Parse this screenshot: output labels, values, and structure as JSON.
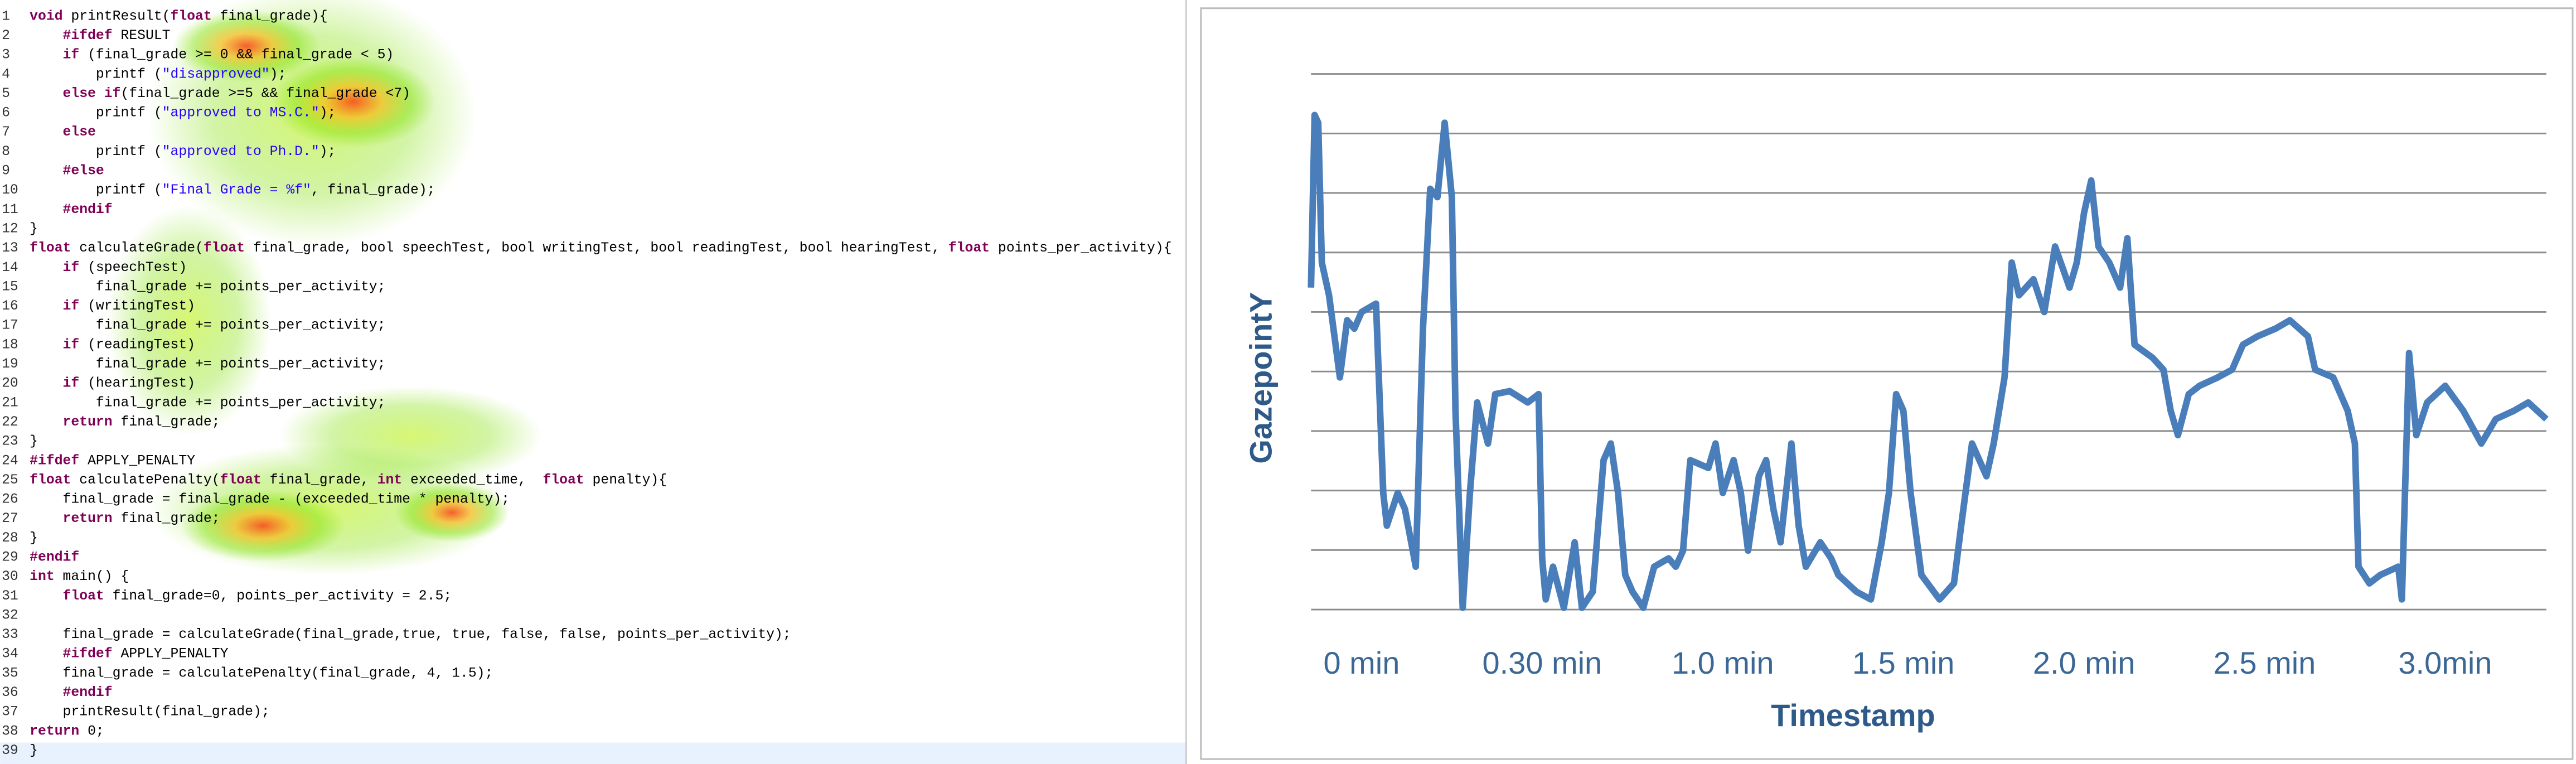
{
  "code": {
    "lines": [
      {
        "number": "1",
        "text": "void printResult(float final_grade){"
      },
      {
        "number": "2",
        "text": "    #ifdef RESULT"
      },
      {
        "number": "3",
        "text": "    if (final_grade >= 0 && final_grade < 5)"
      },
      {
        "number": "4",
        "text": "        printf (\"disapproved\");"
      },
      {
        "number": "5",
        "text": "    else if(final_grade >=5 && final_grade <7)"
      },
      {
        "number": "6",
        "text": "        printf (\"approved to MS.C.\");"
      },
      {
        "number": "7",
        "text": "    else"
      },
      {
        "number": "8",
        "text": "        printf (\"approved to Ph.D.\");"
      },
      {
        "number": "9",
        "text": "    #else"
      },
      {
        "number": "10",
        "text": "        printf (\"Final Grade = %f\", final_grade);"
      },
      {
        "number": "11",
        "text": "    #endif"
      },
      {
        "number": "12",
        "text": "}"
      },
      {
        "number": "13",
        "text": "float calculateGrade(float final_grade, bool speechTest, bool writingTest, bool readingTest, bool hearingTest, float points_per_activity){"
      },
      {
        "number": "14",
        "text": "    if (speechTest)"
      },
      {
        "number": "15",
        "text": "        final_grade += points_per_activity;"
      },
      {
        "number": "16",
        "text": "    if (writingTest)"
      },
      {
        "number": "17",
        "text": "        final_grade += points_per_activity;"
      },
      {
        "number": "18",
        "text": "    if (readingTest)"
      },
      {
        "number": "19",
        "text": "        final_grade += points_per_activity;"
      },
      {
        "number": "20",
        "text": "    if (hearingTest)"
      },
      {
        "number": "21",
        "text": "        final_grade += points_per_activity;"
      },
      {
        "number": "22",
        "text": "    return final_grade;"
      },
      {
        "number": "23",
        "text": "}"
      },
      {
        "number": "24",
        "text": "#ifdef APPLY_PENALTY"
      },
      {
        "number": "25",
        "text": "float calculatePenalty(float final_grade, int exceeded_time,  float penalty){"
      },
      {
        "number": "26",
        "text": "    final_grade = final_grade - (exceeded_time * penalty);"
      },
      {
        "number": "27",
        "text": "    return final_grade;"
      },
      {
        "number": "28",
        "text": "}"
      },
      {
        "number": "29",
        "text": "#endif"
      },
      {
        "number": "30",
        "text": "int main() {"
      },
      {
        "number": "31",
        "text": "    float final_grade=0, points_per_activity = 2.5;"
      },
      {
        "number": "32"
      },
      {
        "number": "33",
        "text": "    final_grade = calculateGrade(final_grade,true, true, false, false, points_per_activity);"
      },
      {
        "number": "34",
        "text": "    #ifdef APPLY_PENALTY"
      },
      {
        "number": "35",
        "text": "    final_grade = calculatePenalty(final_grade, 4, 1.5);"
      },
      {
        "number": "36",
        "text": "    #endif"
      },
      {
        "number": "37",
        "text": "    printResult(final_grade);"
      },
      {
        "number": "38",
        "text": "return 0;"
      },
      {
        "number": "39",
        "text": "}"
      }
    ]
  },
  "chart_data": {
    "type": "line",
    "xlabel": "Timestamp",
    "ylabel": "GazepointY",
    "xlim": [
      -0.14,
      3.28
    ],
    "ylim": [
      0,
      9
    ],
    "xticks": [
      {
        "value": 0,
        "label": "0 min"
      },
      {
        "value": 0.5,
        "label": "0.30 min"
      },
      {
        "value": 1,
        "label": "1.0 min"
      },
      {
        "value": 1.5,
        "label": "1.5 min"
      },
      {
        "value": 2,
        "label": "2.0 min"
      },
      {
        "value": 2.5,
        "label": "2.5 min"
      },
      {
        "value": 3,
        "label": "3.0min"
      }
    ],
    "yticks": [
      0,
      1,
      2,
      3,
      4,
      5,
      6,
      7,
      8,
      9
    ],
    "grid": true,
    "series": [
      {
        "name": "GazepointY",
        "color": "#4a7ebb",
        "x": [
          -0.14,
          -0.13,
          -0.12,
          -0.11,
          -0.09,
          -0.06,
          -0.04,
          -0.02,
          0.0,
          0.04,
          0.06,
          0.07,
          0.1,
          0.12,
          0.15,
          0.17,
          0.19,
          0.21,
          0.23,
          0.25,
          0.26,
          0.28,
          0.3,
          0.32,
          0.35,
          0.37,
          0.41,
          0.46,
          0.49,
          0.5,
          0.51,
          0.53,
          0.56,
          0.59,
          0.61,
          0.64,
          0.67,
          0.69,
          0.71,
          0.73,
          0.75,
          0.78,
          0.81,
          0.85,
          0.87,
          0.89,
          0.91,
          0.96,
          0.98,
          1.0,
          1.03,
          1.05,
          1.07,
          1.1,
          1.12,
          1.14,
          1.16,
          1.19,
          1.21,
          1.23,
          1.27,
          1.3,
          1.32,
          1.37,
          1.41,
          1.44,
          1.46,
          1.48,
          1.5,
          1.52,
          1.55,
          1.6,
          1.64,
          1.66,
          1.69,
          1.73,
          1.75,
          1.78,
          1.8,
          1.82,
          1.86,
          1.89,
          1.92,
          1.96,
          1.98,
          2.0,
          2.02,
          2.04,
          2.07,
          2.1,
          2.12,
          2.14,
          2.19,
          2.22,
          2.24,
          2.26,
          2.29,
          2.32,
          2.37,
          2.41,
          2.44,
          2.48,
          2.53,
          2.57,
          2.62,
          2.64,
          2.69,
          2.73,
          2.75,
          2.76,
          2.79,
          2.82,
          2.87,
          2.88,
          2.9,
          2.92,
          2.95,
          3.0,
          3.05,
          3.1,
          3.14,
          3.19,
          3.23,
          3.28
        ],
        "values": [
          5.41,
          8.31,
          8.18,
          5.83,
          5.28,
          3.9,
          4.86,
          4.72,
          5.0,
          5.14,
          1.96,
          1.41,
          1.96,
          1.69,
          0.72,
          4.72,
          7.07,
          6.93,
          8.18,
          6.93,
          3.34,
          0.03,
          1.96,
          3.48,
          2.79,
          3.62,
          3.67,
          3.48,
          3.62,
          0.86,
          0.17,
          0.72,
          0.03,
          1.13,
          0.03,
          0.3,
          2.51,
          2.79,
          1.96,
          0.58,
          0.3,
          0.03,
          0.72,
          0.86,
          0.72,
          0.99,
          2.51,
          2.38,
          2.79,
          1.96,
          2.51,
          1.96,
          0.99,
          2.24,
          2.51,
          1.69,
          1.13,
          2.79,
          1.41,
          0.72,
          1.13,
          0.86,
          0.58,
          0.3,
          0.17,
          1.13,
          1.96,
          3.62,
          3.34,
          1.96,
          0.58,
          0.17,
          0.44,
          1.41,
          2.79,
          2.24,
          2.79,
          3.9,
          5.83,
          5.28,
          5.55,
          5.0,
          6.1,
          5.41,
          5.83,
          6.66,
          7.21,
          6.1,
          5.83,
          5.41,
          6.24,
          4.45,
          4.23,
          4.03,
          3.34,
          2.93,
          3.62,
          3.76,
          3.9,
          4.03,
          4.45,
          4.59,
          4.72,
          4.86,
          4.59,
          4.03,
          3.9,
          3.34,
          2.79,
          0.72,
          0.44,
          0.58,
          0.72,
          0.17,
          4.31,
          2.93,
          3.48,
          3.76,
          3.34,
          2.79,
          3.2,
          3.34,
          3.48,
          3.2
        ]
      }
    ]
  }
}
